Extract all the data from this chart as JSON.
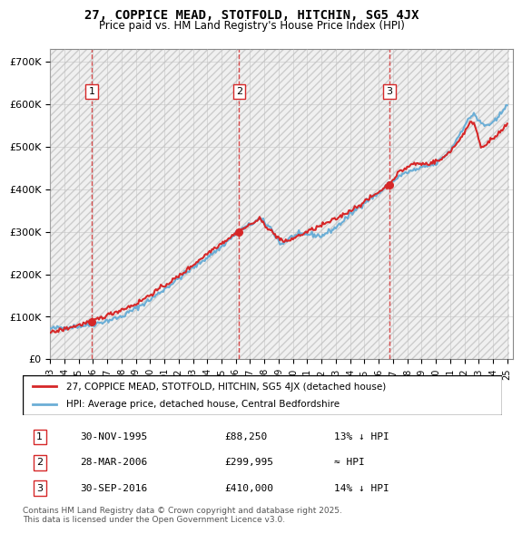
{
  "title_line1": "27, COPPICE MEAD, STOTFOLD, HITCHIN, SG5 4JX",
  "title_line2": "Price paid vs. HM Land Registry's House Price Index (HPI)",
  "ylabel": "",
  "xlabel": "",
  "ylim": [
    0,
    730000
  ],
  "yticks": [
    0,
    100000,
    200000,
    300000,
    400000,
    500000,
    600000,
    700000
  ],
  "ytick_labels": [
    "£0",
    "£100K",
    "£200K",
    "£300K",
    "£400K",
    "£500K",
    "£600K",
    "£700K"
  ],
  "sale_dates": [
    "1995-11-30",
    "2006-03-28",
    "2016-09-30"
  ],
  "sale_prices": [
    88250,
    299995,
    410000
  ],
  "sale_labels": [
    "1",
    "2",
    "3"
  ],
  "sale_label1": "1    30-NOV-1995         £88,250        13% ↓ HPI",
  "sale_label2": "2    28-MAR-2006         £299,995              ≈ HPI",
  "sale_label3": "3    30-SEP-2016         £410,000        14% ↓ HPI",
  "legend_label_red": "27, COPPICE MEAD, STOTFOLD, HITCHIN, SG5 4JX (detached house)",
  "legend_label_blue": "HPI: Average price, detached house, Central Bedfordshire",
  "footer": "Contains HM Land Registry data © Crown copyright and database right 2025.\nThis data is licensed under the Open Government Licence v3.0.",
  "hpi_color": "#6baed6",
  "sale_color": "#d62728",
  "vline_color": "#d62728",
  "bg_hatch_color": "#e8e8e8",
  "grid_color": "#c0c0c0"
}
